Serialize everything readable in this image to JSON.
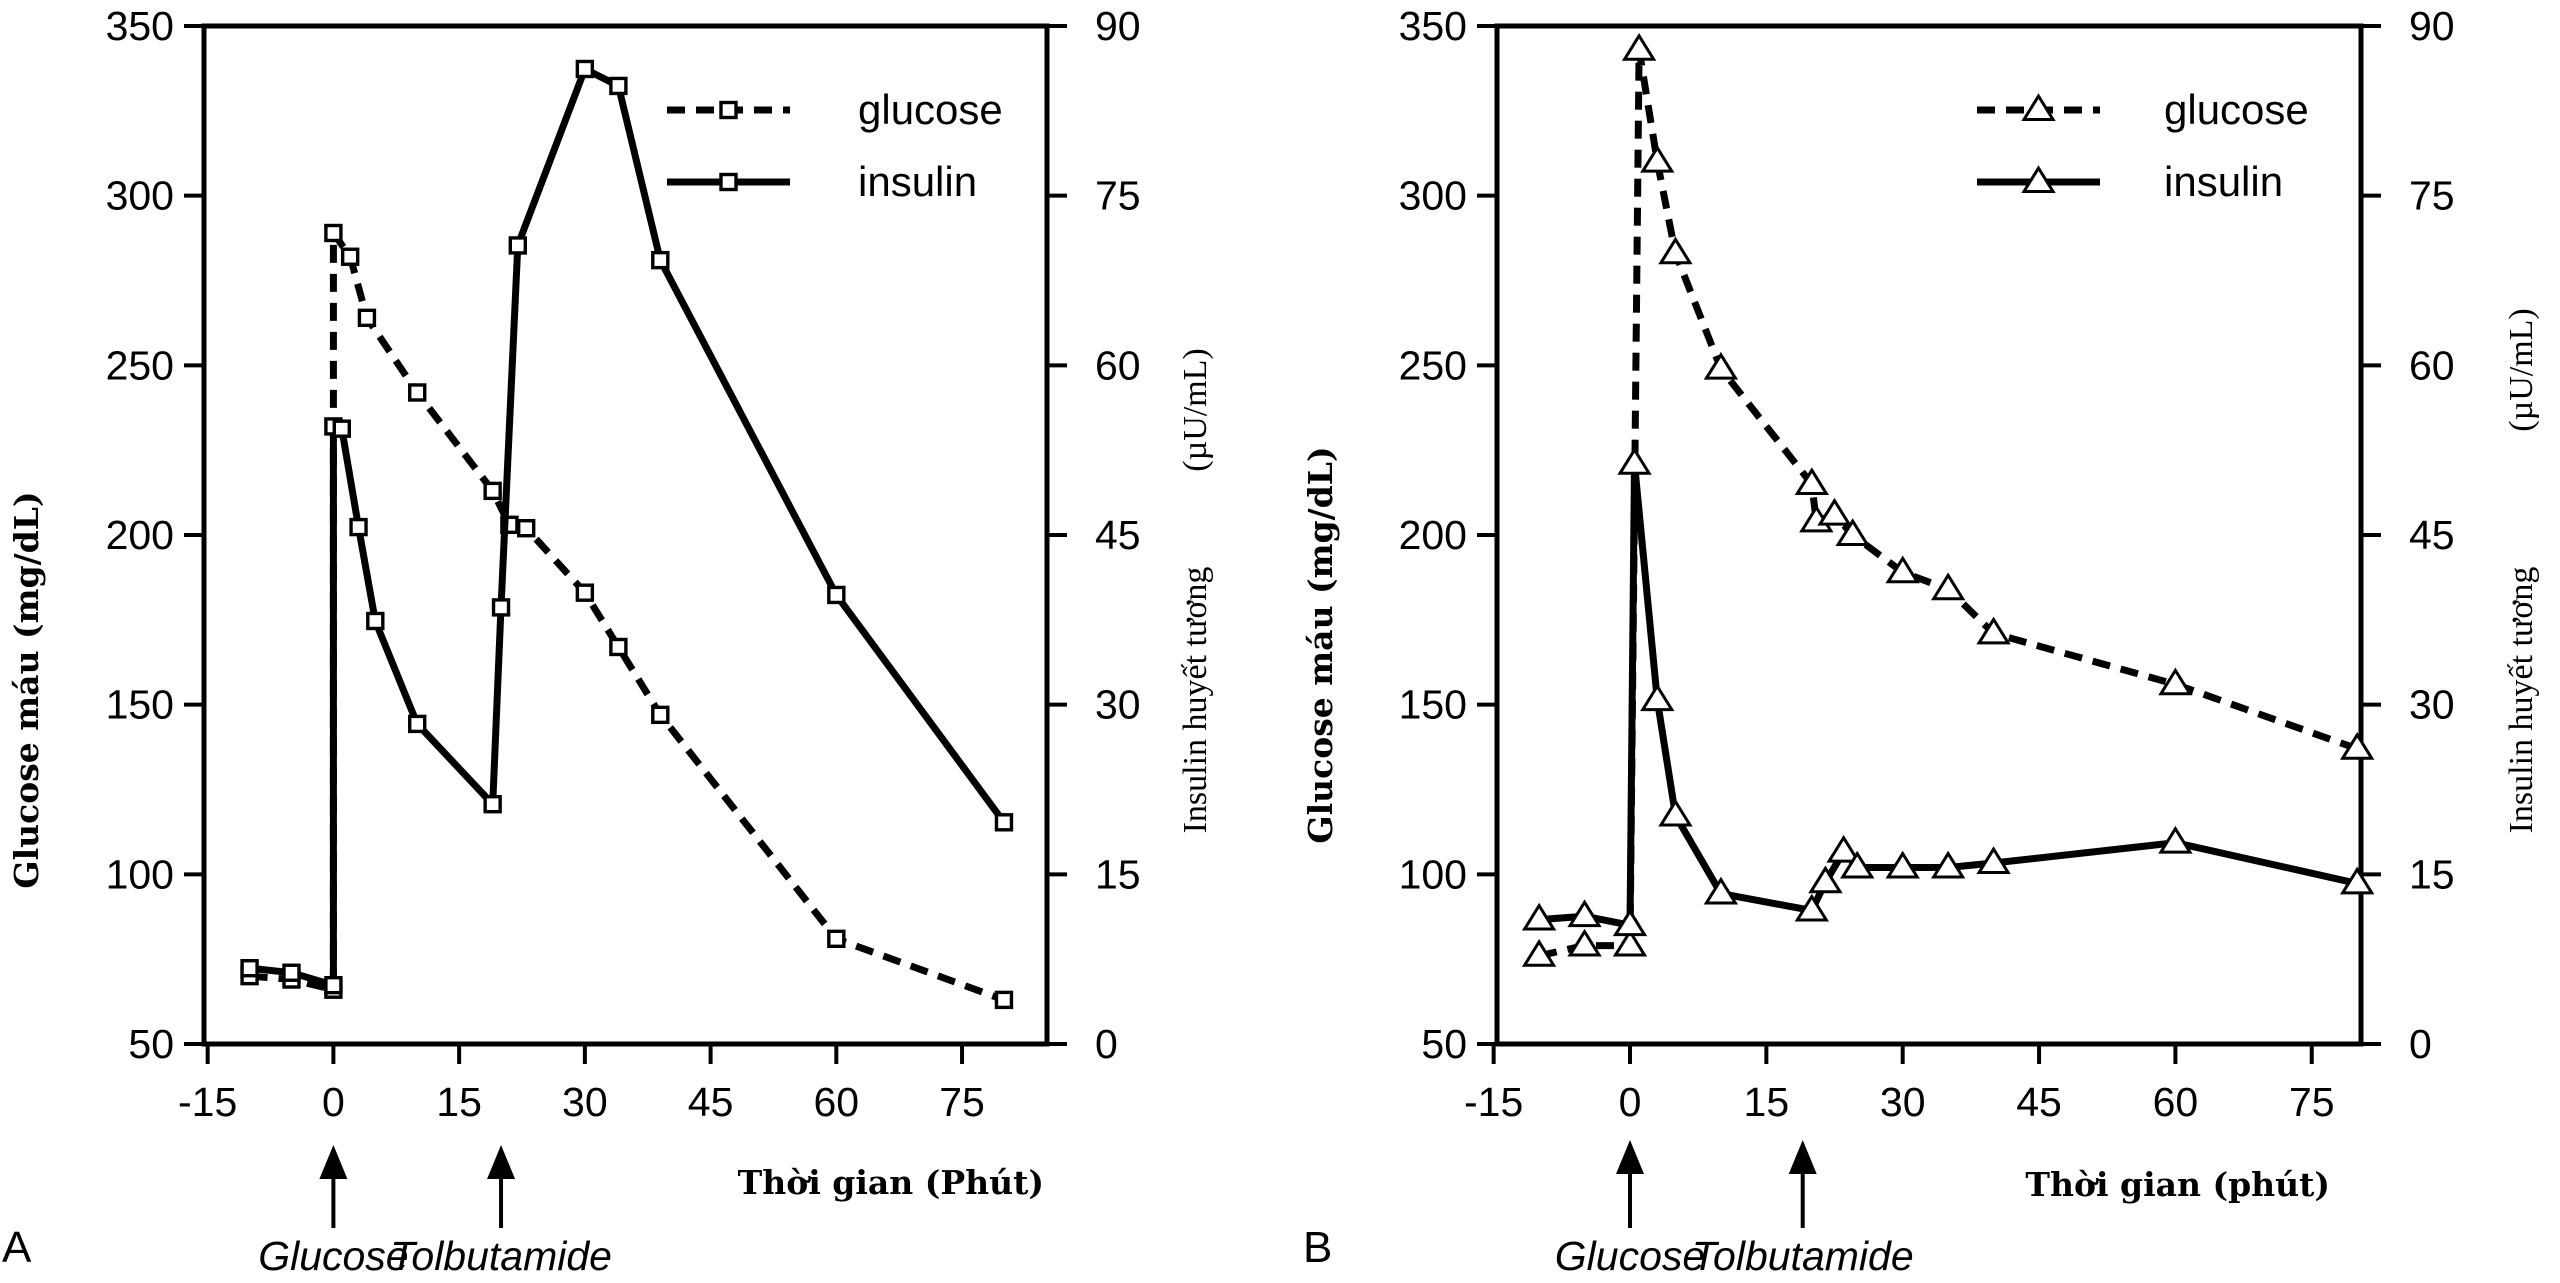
{
  "chart_data": [
    {
      "panel": "A",
      "type": "line",
      "x_tick_labels": [
        "-15",
        "0",
        "15",
        "30",
        "45",
        "60",
        "75"
      ],
      "xlim": [
        -15,
        90
      ],
      "xlabel": "Thời gian (Phút)",
      "y_left": {
        "label": "Glucose máu (mg/dL)",
        "lim": [
          50,
          350
        ],
        "ticks": [
          "50",
          "100",
          "150",
          "200",
          "250",
          "300",
          "350"
        ]
      },
      "y_right": {
        "label": "Insulin huyết tương",
        "unit": "(µU/mL)",
        "lim": [
          0,
          90
        ],
        "ticks": [
          "0",
          "15",
          "30",
          "45",
          "60",
          "75",
          "90"
        ]
      },
      "marker_shape": "square",
      "series": [
        {
          "name": "glucose",
          "axis": "left",
          "style": "dashed",
          "x": [
            -10,
            -5,
            0,
            0,
            2,
            4,
            10,
            19,
            21,
            23,
            30,
            34,
            39,
            60,
            80
          ],
          "y": [
            70,
            69,
            66,
            289,
            282,
            264,
            242,
            213,
            203,
            202,
            183,
            167,
            147,
            81,
            63
          ]
        },
        {
          "name": "insulin",
          "axis": "right",
          "style": "solid",
          "x": [
            -10,
            -5,
            0,
            0,
            1,
            3,
            5,
            10,
            19,
            20,
            22,
            30,
            34,
            39,
            60,
            80
          ],
          "y": [
            6.7,
            6.3,
            5.2,
            54.6,
            54.4,
            45.7,
            37.4,
            28.3,
            21.2,
            38.6,
            70.6,
            86.2,
            84.7,
            69.3,
            39.7,
            19.6
          ]
        }
      ],
      "annotations": [
        {
          "x": 0,
          "label": "Glucose"
        },
        {
          "x": 20,
          "label": "Tolbutamide"
        }
      ]
    },
    {
      "panel": "B",
      "type": "line",
      "x_tick_labels": [
        "-15",
        "0",
        "15",
        "30",
        "45",
        "60",
        "75"
      ],
      "xlim": [
        -15,
        80
      ],
      "xlabel": "Thời gian (phút)",
      "y_left": {
        "label": "Glucose máu (mg/dL)",
        "lim": [
          50,
          350
        ],
        "ticks": [
          "50",
          "100",
          "150",
          "200",
          "250",
          "300",
          "350"
        ]
      },
      "y_right": {
        "label": "Insulin huyết tương",
        "unit": "(µU/mL)",
        "lim": [
          0,
          90
        ],
        "ticks": [
          "0",
          "15",
          "30",
          "45",
          "60",
          "75",
          "90"
        ]
      },
      "marker_shape": "triangle",
      "series": [
        {
          "name": "glucose",
          "axis": "left",
          "style": "dashed",
          "x": [
            -10,
            -5,
            0,
            1,
            3,
            5,
            10,
            20,
            20.5,
            22.5,
            24.5,
            30,
            35,
            40,
            60,
            80
          ],
          "y": [
            76,
            79,
            79,
            343,
            310,
            283,
            249,
            215,
            204,
            206,
            200,
            189,
            184,
            171,
            156,
            137
          ]
        },
        {
          "name": "insulin",
          "axis": "right",
          "style": "solid",
          "x": [
            -10,
            -5,
            0,
            0.5,
            3,
            5,
            10,
            20,
            21.5,
            23.5,
            25,
            30,
            35,
            40,
            60,
            80
          ],
          "y": [
            11,
            11.3,
            10.5,
            51.3,
            30.4,
            20.2,
            13.3,
            11.8,
            14.3,
            17,
            15.6,
            15.6,
            15.6,
            16,
            17.8,
            14.2
          ]
        }
      ],
      "annotations": [
        {
          "x": 0,
          "label": "Glucose"
        },
        {
          "x": 19,
          "label": "Tolbutamide"
        }
      ]
    }
  ]
}
